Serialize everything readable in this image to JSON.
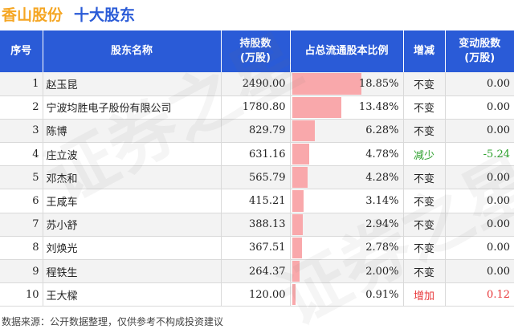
{
  "header": {
    "company": "香山股份",
    "subtitle": "十大股东"
  },
  "columns": {
    "rank": "序号",
    "name": "股东名称",
    "shares": "持股数\n(万股)",
    "ratio": "占总流通股本比例",
    "change": "增减",
    "delta": "变动股数\n(万股)"
  },
  "colors": {
    "header_bg": "#2a5bd7",
    "title_company": "#f5a623",
    "title_sub": "#2a5bd7",
    "bar": "#f9a8ab",
    "increase": "#e8383a",
    "decrease": "#2ca02c"
  },
  "chart_data": {
    "type": "table",
    "bar_max_percent": 18.85,
    "rows": [
      {
        "rank": "1",
        "name": "赵玉昆",
        "shares": "2490.00",
        "ratio": 18.85,
        "ratio_label": "18.85%",
        "change": "不变",
        "delta": "0.00",
        "dir": "none"
      },
      {
        "rank": "2",
        "name": "宁波均胜电子股份有限公司",
        "shares": "1780.80",
        "ratio": 13.48,
        "ratio_label": "13.48%",
        "change": "不变",
        "delta": "0.00",
        "dir": "none"
      },
      {
        "rank": "3",
        "name": "陈博",
        "shares": "829.79",
        "ratio": 6.28,
        "ratio_label": "6.28%",
        "change": "不变",
        "delta": "0.00",
        "dir": "none"
      },
      {
        "rank": "4",
        "name": "庄立波",
        "shares": "631.16",
        "ratio": 4.78,
        "ratio_label": "4.78%",
        "change": "减少",
        "delta": "-5.24",
        "dir": "down"
      },
      {
        "rank": "5",
        "name": "邓杰和",
        "shares": "565.79",
        "ratio": 4.28,
        "ratio_label": "4.28%",
        "change": "不变",
        "delta": "0.00",
        "dir": "none"
      },
      {
        "rank": "6",
        "name": "王咸车",
        "shares": "415.21",
        "ratio": 3.14,
        "ratio_label": "3.14%",
        "change": "不变",
        "delta": "0.00",
        "dir": "none"
      },
      {
        "rank": "7",
        "name": "苏小舒",
        "shares": "388.13",
        "ratio": 2.94,
        "ratio_label": "2.94%",
        "change": "不变",
        "delta": "0.00",
        "dir": "none"
      },
      {
        "rank": "8",
        "name": "刘焕光",
        "shares": "367.51",
        "ratio": 2.78,
        "ratio_label": "2.78%",
        "change": "不变",
        "delta": "0.00",
        "dir": "none"
      },
      {
        "rank": "9",
        "name": "程铁生",
        "shares": "264.37",
        "ratio": 2.0,
        "ratio_label": "2.00%",
        "change": "不变",
        "delta": "0.00",
        "dir": "none"
      },
      {
        "rank": "10",
        "name": "王大樑",
        "shares": "120.00",
        "ratio": 0.91,
        "ratio_label": "0.91%",
        "change": "增加",
        "delta": "0.12",
        "dir": "up"
      }
    ]
  },
  "footer": {
    "source": "数据来源：公开数据整理，仅供参考不构成投资建议"
  },
  "watermark": {
    "text": "证券之星"
  }
}
